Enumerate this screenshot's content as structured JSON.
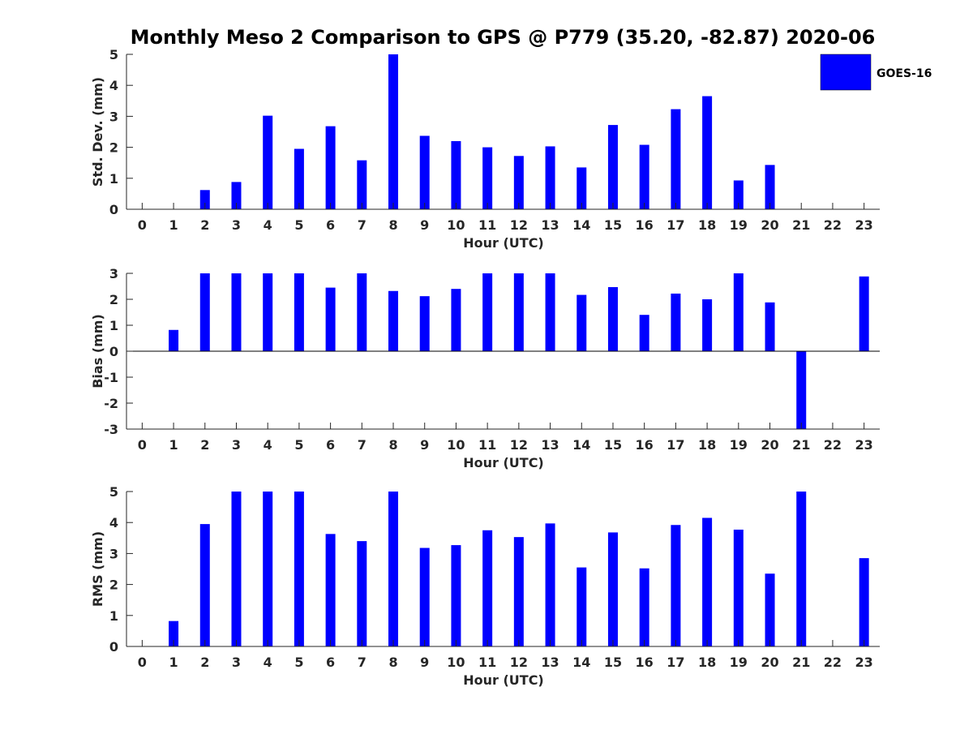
{
  "figure": {
    "title": "Monthly Meso 2 Comparison to GPS @ P779 (35.20, -82.87) 2020-06",
    "legend": {
      "label": "GOES-16",
      "color": "#0000ff",
      "placement": "top-right"
    }
  },
  "chart_data": [
    {
      "type": "bar",
      "ylabel": "Std. Dev. (mm)",
      "xlabel": "Hour (UTC)",
      "ylim": [
        0,
        5
      ],
      "yticks": [
        0,
        1,
        2,
        3,
        4,
        5
      ],
      "x": [
        0,
        1,
        2,
        3,
        4,
        5,
        6,
        7,
        8,
        9,
        10,
        11,
        12,
        13,
        14,
        15,
        16,
        17,
        18,
        19,
        20,
        21,
        22,
        23
      ],
      "series": [
        {
          "name": "GOES-16",
          "color": "#0000ff",
          "values": [
            null,
            null,
            0.62,
            0.88,
            3.02,
            1.95,
            2.68,
            1.58,
            5.0,
            2.37,
            2.2,
            2.0,
            1.72,
            2.03,
            1.35,
            2.72,
            2.08,
            3.23,
            3.65,
            0.93,
            1.43,
            null,
            null,
            null
          ]
        }
      ]
    },
    {
      "type": "bar",
      "ylabel": "Bias (mm)",
      "xlabel": "Hour (UTC)",
      "ylim": [
        -3,
        3
      ],
      "yticks": [
        -3,
        -2,
        -1,
        0,
        1,
        2,
        3
      ],
      "x": [
        0,
        1,
        2,
        3,
        4,
        5,
        6,
        7,
        8,
        9,
        10,
        11,
        12,
        13,
        14,
        15,
        16,
        17,
        18,
        19,
        20,
        21,
        22,
        23
      ],
      "series": [
        {
          "name": "GOES-16",
          "color": "#0000ff",
          "values": [
            null,
            0.82,
            3.0,
            3.0,
            3.0,
            3.0,
            2.45,
            3.0,
            2.32,
            2.12,
            2.4,
            3.0,
            3.0,
            3.0,
            2.17,
            2.47,
            1.4,
            2.22,
            2.0,
            3.0,
            1.88,
            -3.0,
            null,
            2.88
          ]
        }
      ]
    },
    {
      "type": "bar",
      "ylabel": "RMS (mm)",
      "xlabel": "Hour (UTC)",
      "ylim": [
        0,
        5
      ],
      "yticks": [
        0,
        1,
        2,
        3,
        4,
        5
      ],
      "x": [
        0,
        1,
        2,
        3,
        4,
        5,
        6,
        7,
        8,
        9,
        10,
        11,
        12,
        13,
        14,
        15,
        16,
        17,
        18,
        19,
        20,
        21,
        22,
        23
      ],
      "series": [
        {
          "name": "GOES-16",
          "color": "#0000ff",
          "values": [
            null,
            0.82,
            3.95,
            5.0,
            5.0,
            5.0,
            3.63,
            3.4,
            5.0,
            3.18,
            3.27,
            3.75,
            3.53,
            3.97,
            2.55,
            3.68,
            2.52,
            3.92,
            4.15,
            3.77,
            2.35,
            5.0,
            null,
            2.85
          ]
        }
      ]
    }
  ]
}
